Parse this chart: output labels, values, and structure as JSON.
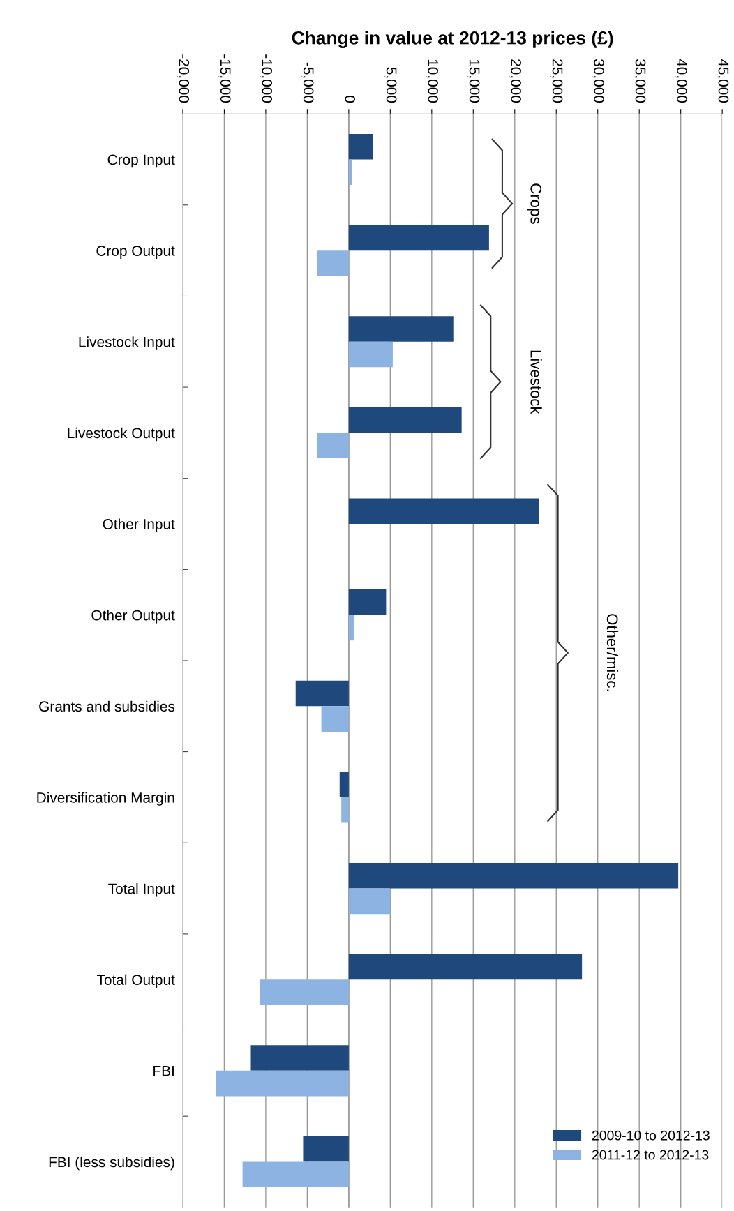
{
  "chart_data": {
    "type": "bar",
    "orientation": "horizontal",
    "xlabel": "Change in value at 2012-13 prices (£)",
    "categories": [
      "Crop Input",
      "Crop Output",
      "Livestock Input",
      "Livestock Output",
      "Other Input",
      "Other Output",
      "Grants and subsidies",
      "Diversification Margin",
      "Total Input",
      "Total Output",
      "FBI",
      "FBI (less subsidies)"
    ],
    "series": [
      {
        "name": "2009-10 to 2012-13",
        "color": "#1f497d",
        "values": [
          2900,
          16900,
          12600,
          13600,
          22900,
          4500,
          -6400,
          -1100,
          39700,
          28100,
          -11800,
          -5500
        ]
      },
      {
        "name": "2011-12 to 2012-13",
        "color": "#8db3e2",
        "values": [
          400,
          -3800,
          5300,
          -3800,
          0,
          600,
          -3300,
          -900,
          5000,
          -10700,
          -16000,
          -12800
        ]
      }
    ],
    "xlim": [
      -20000,
      45000
    ],
    "xticks": [
      {
        "value": -20000,
        "label": "-20,000"
      },
      {
        "value": -15000,
        "label": "-15,000"
      },
      {
        "value": -10000,
        "label": "-10,000"
      },
      {
        "value": -5000,
        "label": "-5,000"
      },
      0,
      {
        "value": 5000,
        "label": "5,000"
      },
      {
        "value": 10000,
        "label": "10,000"
      },
      {
        "value": 15000,
        "label": "15,000"
      },
      {
        "value": 20000,
        "label": "20,000"
      },
      {
        "value": 25000,
        "label": "25,000"
      },
      {
        "value": 30000,
        "label": "30,000"
      },
      {
        "value": 35000,
        "label": "35,000"
      },
      {
        "value": 40000,
        "label": "40,000"
      },
      {
        "value": 45000,
        "label": "45,000"
      }
    ],
    "annotations": [
      "Crops",
      "Livestock",
      "Other/misc."
    ],
    "grid": "x",
    "legend": "bottom right"
  }
}
